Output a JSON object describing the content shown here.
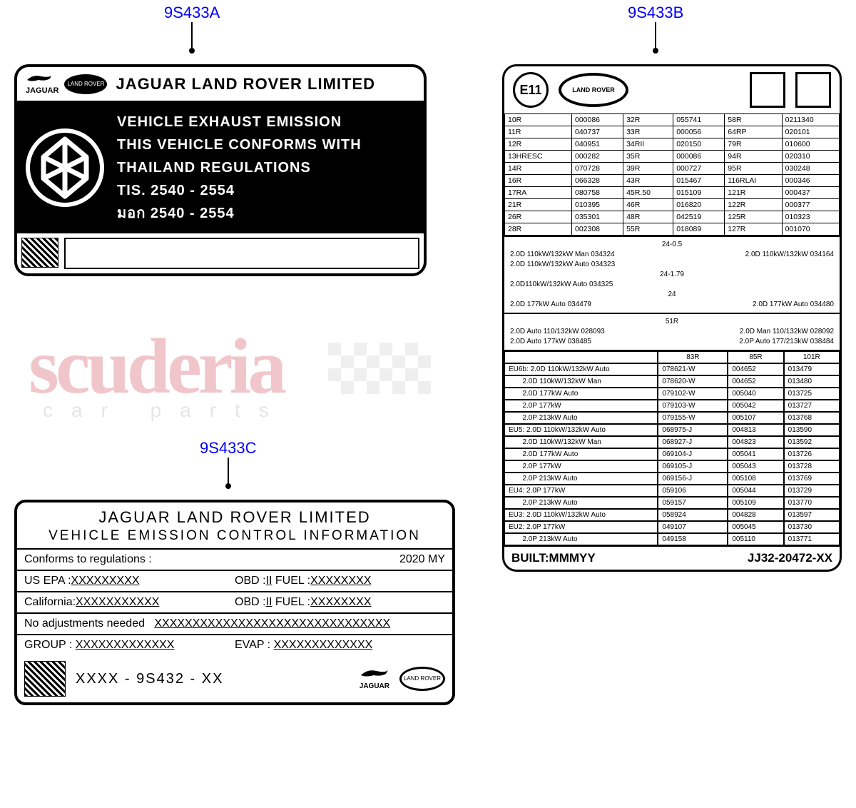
{
  "callouts": {
    "a": "9S433A",
    "b": "9S433B",
    "c": "9S433C"
  },
  "colors": {
    "callout": "#0000ff",
    "watermark": "#c8202f",
    "line": "#000000",
    "bg": "#ffffff"
  },
  "labelA": {
    "company": "JAGUAR LAND ROVER LIMITED",
    "jaguar": "JAGUAR",
    "landrover": "LAND\nROVER",
    "line1": "VEHICLE EXHAUST EMISSION",
    "line2": "THIS  VEHICLE CONFORMS WITH",
    "line3": "THAILAND  REGULATIONS",
    "line4": "TIS.   2540 - 2554",
    "line5": "มอก  2540 - 2554"
  },
  "labelB": {
    "e11": "E11",
    "landrover": "LAND\nROVER",
    "grid": [
      [
        "10R",
        "000086",
        "32R",
        "055741",
        "58R",
        "0211340"
      ],
      [
        "11R",
        "040737",
        "33R",
        "000056",
        "64RP",
        "020101"
      ],
      [
        "12R",
        "040951",
        "34RII",
        "020150",
        "79R",
        "010600"
      ],
      [
        "13HRESC",
        "000282",
        "35R",
        "000086",
        "94R",
        "020310"
      ],
      [
        "14R",
        "070728",
        "39R",
        "000727",
        "95R",
        "030248"
      ],
      [
        "16R",
        "066328",
        "43R",
        "015467",
        "116RLAI",
        "000346"
      ],
      [
        "17RA",
        "080758",
        "45R.50",
        "015109",
        "121R",
        "000437"
      ],
      [
        "21R",
        "010395",
        "46R",
        "016820",
        "122R",
        "000377"
      ],
      [
        "26R",
        "035301",
        "48R",
        "042519",
        "125R",
        "010323"
      ],
      [
        "28R",
        "002308",
        "55R",
        "018089",
        "127R",
        "001070"
      ]
    ],
    "sec1": {
      "h1": "24-0.5",
      "l1a": "2.0D 110kW/132kW Man   034324",
      "l1b": "2.0D 110kW/132kW   034164",
      "l2": "2.0D 110kW/132kW Auto   034323",
      "h2": "24-1.79",
      "l3": "2.0D110kW/132kW Auto   034325",
      "h3": "24",
      "l4a": "2.0D 177kW Auto         034479",
      "l4b": "2.0D 177kW Auto   034480"
    },
    "sec2": {
      "h": "51R",
      "l1a": "2.0D Auto 110/132kW 028093",
      "l1b": "2.0D Man 110/132kW 028092",
      "l2a": "2.0D Auto 177kW      038485",
      "l2b": "2.0P Auto 177/213kW 038484"
    },
    "tbl": {
      "hdr": [
        "",
        "83R",
        "85R",
        "101R"
      ],
      "groups": [
        {
          "label": "EU6b:",
          "rows": [
            [
              "2.0D 110kW/132kW Auto",
              "078621-W",
              "004652",
              "013479"
            ],
            [
              "2.0D 110kW/132kW Man",
              "078620-W",
              "004652",
              "013480"
            ],
            [
              "2.0D 177kW Auto",
              "079102-W",
              "005040",
              "013725"
            ],
            [
              "2.0P 177kW",
              "079103-W",
              "005042",
              "013727"
            ],
            [
              "2.0P 213kW Auto",
              "079155-W",
              "005107",
              "013768"
            ]
          ]
        },
        {
          "label": "EU5:",
          "rows": [
            [
              "2.0D 110kW/132kW Auto",
              "068975-J",
              "004813",
              "013590"
            ],
            [
              "2.0D 110kW/132kW Man",
              "068927-J",
              "004823",
              "013592"
            ],
            [
              "2.0D 177kW Auto",
              "069104-J",
              "005041",
              "013726"
            ],
            [
              "2.0P 177kW",
              "069105-J",
              "005043",
              "013728"
            ],
            [
              "2.0P 213kW Auto",
              "069156-J",
              "005108",
              "013769"
            ]
          ]
        },
        {
          "label": "EU4:",
          "rows": [
            [
              "2.0P 177kW",
              "059106",
              "005044",
              "013729"
            ],
            [
              "2.0P 213kW Auto",
              "059157",
              "005109",
              "013770"
            ]
          ]
        },
        {
          "label": "EU3:",
          "rows": [
            [
              "2.0D 110kW/132kW Auto",
              "058924",
              "004828",
              "013597"
            ]
          ]
        },
        {
          "label": "EU2:",
          "rows": [
            [
              "2.0P 177kW",
              "049107",
              "005045",
              "013730"
            ],
            [
              "2.0P 213kW Auto",
              "049158",
              "005110",
              "013771"
            ]
          ]
        }
      ]
    },
    "built": {
      "l": "BUILT:MMMYY",
      "r": "JJ32-20472-XX"
    }
  },
  "labelC": {
    "company": "JAGUAR LAND ROVER LIMITED",
    "title": "VEHICLE  EMISSION  CONTROL  INFORMATION",
    "conforms": "Conforms  to  regulations :",
    "my": "2020  MY",
    "us": "US  EPA :",
    "usv": "XXXXXXXXX",
    "obd": "OBD :",
    "obdv": "II",
    "fuel": "FUEL :",
    "fuelv": "XXXXXXXX",
    "cal": "California:",
    "calv": "XXXXXXXXXXX",
    "noadj": "No adjustments needed",
    "noadjv": "XXXXXXXXXXXXXXXXXXXXXXXXXXXXXXX",
    "group": "GROUP :",
    "groupv": "XXXXXXXXXXXXX",
    "evap": "EVAP :",
    "evapv": "XXXXXXXXXXXXX",
    "partno": "XXXX - 9S432 - XX",
    "jaguar": "JAGUAR",
    "landrover": "LAND\nROVER"
  },
  "watermark": {
    "main": "scuderia",
    "sub": "car parts"
  }
}
